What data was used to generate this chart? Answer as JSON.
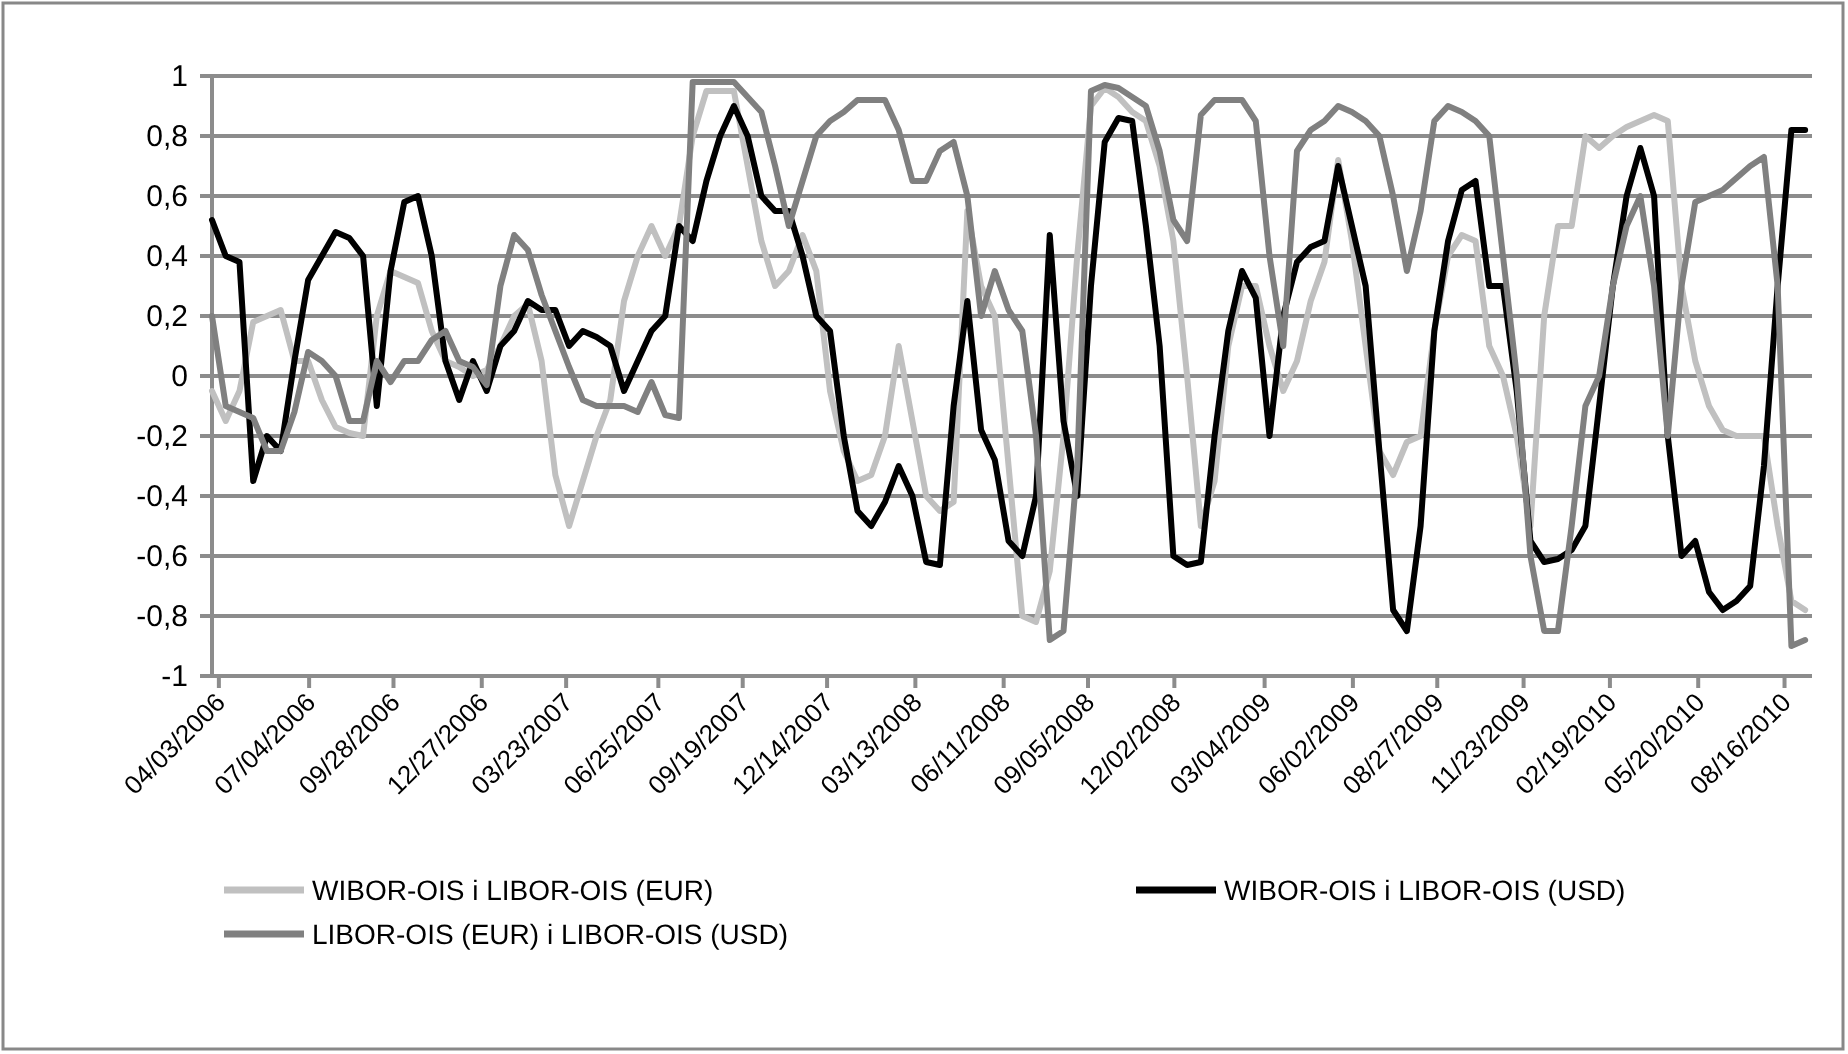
{
  "chart_data": {
    "type": "line",
    "x": [
      "2006-03-27",
      "2006-04-10",
      "2006-04-24",
      "2006-05-08",
      "2006-05-22",
      "2006-06-05",
      "2006-06-19",
      "2006-07-03",
      "2006-07-17",
      "2006-07-31",
      "2006-08-14",
      "2006-08-28",
      "2006-09-11",
      "2006-09-25",
      "2006-10-09",
      "2006-10-23",
      "2006-11-06",
      "2006-11-20",
      "2006-12-04",
      "2006-12-18",
      "2007-01-01",
      "2007-01-15",
      "2007-01-29",
      "2007-02-12",
      "2007-02-26",
      "2007-03-12",
      "2007-03-26",
      "2007-04-09",
      "2007-04-23",
      "2007-05-07",
      "2007-05-21",
      "2007-06-04",
      "2007-06-18",
      "2007-07-02",
      "2007-07-16",
      "2007-07-30",
      "2007-08-13",
      "2007-08-27",
      "2007-09-10",
      "2007-09-24",
      "2007-10-08",
      "2007-10-22",
      "2007-11-05",
      "2007-11-19",
      "2007-12-03",
      "2007-12-17",
      "2007-12-31",
      "2008-01-14",
      "2008-01-28",
      "2008-02-11",
      "2008-02-25",
      "2008-03-10",
      "2008-03-24",
      "2008-04-07",
      "2008-04-21",
      "2008-05-05",
      "2008-05-19",
      "2008-06-02",
      "2008-06-16",
      "2008-06-30",
      "2008-07-14",
      "2008-07-28",
      "2008-08-11",
      "2008-08-25",
      "2008-09-08",
      "2008-09-22",
      "2008-10-06",
      "2008-10-20",
      "2008-11-03",
      "2008-11-17",
      "2008-12-01",
      "2008-12-15",
      "2008-12-29",
      "2009-01-12",
      "2009-01-26",
      "2009-02-09",
      "2009-02-23",
      "2009-03-09",
      "2009-03-23",
      "2009-04-06",
      "2009-04-20",
      "2009-05-04",
      "2009-05-18",
      "2009-06-01",
      "2009-06-15",
      "2009-06-29",
      "2009-07-13",
      "2009-07-27",
      "2009-08-10",
      "2009-08-24",
      "2009-09-07",
      "2009-09-21",
      "2009-10-05",
      "2009-10-19",
      "2009-11-02",
      "2009-11-16",
      "2009-11-30",
      "2009-12-14",
      "2009-12-28",
      "2010-01-11",
      "2010-01-25",
      "2010-02-08",
      "2010-02-22",
      "2010-03-08",
      "2010-03-22",
      "2010-04-05",
      "2010-04-19",
      "2010-05-03",
      "2010-05-17",
      "2010-05-31",
      "2010-06-14",
      "2010-06-28",
      "2010-07-12",
      "2010-07-26",
      "2010-08-09",
      "2010-08-23",
      "2010-09-06"
    ],
    "series": [
      {
        "name": "WIBOR-OIS i LIBOR-OIS (EUR)",
        "color": "#c0c0c0",
        "values": [
          -0.05,
          -0.15,
          -0.05,
          0.18,
          0.2,
          0.22,
          0.05,
          0.05,
          -0.08,
          -0.17,
          -0.19,
          -0.2,
          0.2,
          0.35,
          0.33,
          0.31,
          0.15,
          0.05,
          0.03,
          0.0,
          0.02,
          0.1,
          0.2,
          0.24,
          0.05,
          -0.33,
          -0.5,
          -0.35,
          -0.2,
          -0.08,
          0.25,
          0.4,
          0.5,
          0.4,
          0.5,
          0.8,
          0.95,
          0.95,
          0.95,
          0.7,
          0.45,
          0.3,
          0.35,
          0.47,
          0.35,
          -0.05,
          -0.25,
          -0.35,
          -0.33,
          -0.2,
          0.1,
          -0.15,
          -0.4,
          -0.45,
          -0.42,
          0.55,
          0.3,
          0.2,
          -0.3,
          -0.8,
          -0.82,
          -0.65,
          -0.2,
          0.4,
          0.9,
          0.96,
          0.93,
          0.88,
          0.85,
          0.7,
          0.45,
          0.0,
          -0.5,
          -0.35,
          0.1,
          0.3,
          0.3,
          0.1,
          -0.05,
          0.05,
          0.25,
          0.38,
          0.72,
          0.45,
          0.1,
          -0.25,
          -0.33,
          -0.22,
          -0.2,
          0.15,
          0.4,
          0.47,
          0.45,
          0.1,
          0.0,
          -0.2,
          -0.5,
          0.2,
          0.5,
          0.5,
          0.8,
          0.76,
          0.8,
          0.83,
          0.85,
          0.87,
          0.85,
          0.3,
          0.05,
          -0.1,
          -0.18,
          -0.2,
          -0.2,
          -0.2,
          -0.5,
          -0.75,
          -0.78
        ]
      },
      {
        "name": "WIBOR-OIS i LIBOR-OIS (USD)",
        "color": "#000000",
        "values": [
          0.52,
          0.4,
          0.38,
          -0.35,
          -0.2,
          -0.25,
          0.05,
          0.32,
          0.4,
          0.48,
          0.46,
          0.4,
          -0.1,
          0.35,
          0.58,
          0.6,
          0.4,
          0.05,
          -0.08,
          0.05,
          -0.05,
          0.1,
          0.15,
          0.25,
          0.22,
          0.22,
          0.1,
          0.15,
          0.13,
          0.1,
          -0.05,
          0.05,
          0.15,
          0.2,
          0.5,
          0.45,
          0.65,
          0.8,
          0.9,
          0.8,
          0.6,
          0.55,
          0.55,
          0.4,
          0.2,
          0.15,
          -0.2,
          -0.45,
          -0.5,
          -0.42,
          -0.3,
          -0.4,
          -0.62,
          -0.63,
          -0.1,
          0.25,
          -0.18,
          -0.28,
          -0.55,
          -0.6,
          -0.4,
          0.47,
          -0.15,
          -0.4,
          0.3,
          0.78,
          0.86,
          0.85,
          0.5,
          0.1,
          -0.6,
          -0.63,
          -0.62,
          -0.2,
          0.15,
          0.35,
          0.26,
          -0.2,
          0.2,
          0.38,
          0.43,
          0.45,
          0.7,
          0.5,
          0.3,
          -0.25,
          -0.78,
          -0.85,
          -0.5,
          0.15,
          0.45,
          0.62,
          0.65,
          0.3,
          0.3,
          -0.05,
          -0.55,
          -0.62,
          -0.61,
          -0.58,
          -0.5,
          -0.1,
          0.3,
          0.6,
          0.76,
          0.6,
          -0.2,
          -0.6,
          -0.55,
          -0.72,
          -0.78,
          -0.75,
          -0.7,
          -0.3,
          0.3,
          0.82,
          0.82
        ]
      },
      {
        "name": "LIBOR-OIS (EUR) i LIBOR-OIS (USD)",
        "color": "#808080",
        "values": [
          0.2,
          -0.1,
          -0.12,
          -0.14,
          -0.25,
          -0.25,
          -0.12,
          0.08,
          0.05,
          0.0,
          -0.15,
          -0.15,
          0.05,
          -0.02,
          0.05,
          0.05,
          0.12,
          0.15,
          0.05,
          0.03,
          -0.03,
          0.3,
          0.47,
          0.42,
          0.27,
          0.15,
          0.03,
          -0.08,
          -0.1,
          -0.1,
          -0.1,
          -0.12,
          -0.02,
          -0.13,
          -0.14,
          0.98,
          0.98,
          0.98,
          0.98,
          0.93,
          0.88,
          0.7,
          0.5,
          0.65,
          0.8,
          0.85,
          0.88,
          0.92,
          0.92,
          0.92,
          0.82,
          0.65,
          0.65,
          0.75,
          0.78,
          0.6,
          0.2,
          0.35,
          0.22,
          0.15,
          -0.2,
          -0.88,
          -0.85,
          -0.3,
          0.95,
          0.97,
          0.96,
          0.93,
          0.9,
          0.75,
          0.52,
          0.45,
          0.87,
          0.92,
          0.92,
          0.92,
          0.85,
          0.4,
          0.1,
          0.75,
          0.82,
          0.85,
          0.9,
          0.88,
          0.85,
          0.8,
          0.6,
          0.35,
          0.55,
          0.85,
          0.9,
          0.88,
          0.85,
          0.8,
          0.4,
          0.0,
          -0.6,
          -0.85,
          -0.85,
          -0.5,
          -0.1,
          0.0,
          0.3,
          0.5,
          0.6,
          0.3,
          -0.2,
          0.3,
          0.58,
          0.6,
          0.62,
          0.66,
          0.7,
          0.73,
          0.3,
          -0.9,
          -0.88
        ]
      }
    ],
    "xlim": [
      "2006-03-27",
      "2010-09-13"
    ],
    "xticks": [
      {
        "value": "2006-04-03",
        "label": "04/03/2006"
      },
      {
        "value": "2006-07-04",
        "label": "07/04/2006"
      },
      {
        "value": "2006-09-28",
        "label": "09/28/2006"
      },
      {
        "value": "2006-12-27",
        "label": "12/27/2006"
      },
      {
        "value": "2007-03-23",
        "label": "03/23/2007"
      },
      {
        "value": "2007-06-25",
        "label": "06/25/2007"
      },
      {
        "value": "2007-09-19",
        "label": "09/19/2007"
      },
      {
        "value": "2007-12-14",
        "label": "12/14/2007"
      },
      {
        "value": "2008-03-13",
        "label": "03/13/2008"
      },
      {
        "value": "2008-06-11",
        "label": "06/11/2008"
      },
      {
        "value": "2008-09-05",
        "label": "09/05/2008"
      },
      {
        "value": "2008-12-02",
        "label": "12/02/2008"
      },
      {
        "value": "2009-03-04",
        "label": "03/04/2009"
      },
      {
        "value": "2009-06-02",
        "label": "06/02/2009"
      },
      {
        "value": "2009-08-27",
        "label": "08/27/2009"
      },
      {
        "value": "2009-11-23",
        "label": "11/23/2009"
      },
      {
        "value": "2010-02-19",
        "label": "02/19/2010"
      },
      {
        "value": "2010-05-20",
        "label": "05/20/2010"
      },
      {
        "value": "2010-08-16",
        "label": "08/16/2010"
      }
    ],
    "ylim": [
      -1,
      1
    ],
    "yticks": [
      -1,
      {
        "value": -0.8,
        "label": "-0,8"
      },
      {
        "value": -0.6,
        "label": "-0,6"
      },
      {
        "value": -0.4,
        "label": "-0,4"
      },
      {
        "value": -0.2,
        "label": "-0,2"
      },
      0,
      {
        "value": 0.2,
        "label": "0,2"
      },
      {
        "value": 0.4,
        "label": "0,4"
      },
      {
        "value": 0.6,
        "label": "0,6"
      },
      {
        "value": 0.8,
        "label": "0,8"
      },
      1
    ],
    "grid": "y",
    "legend": "bottom",
    "marker": "none",
    "line_style": "solid"
  }
}
